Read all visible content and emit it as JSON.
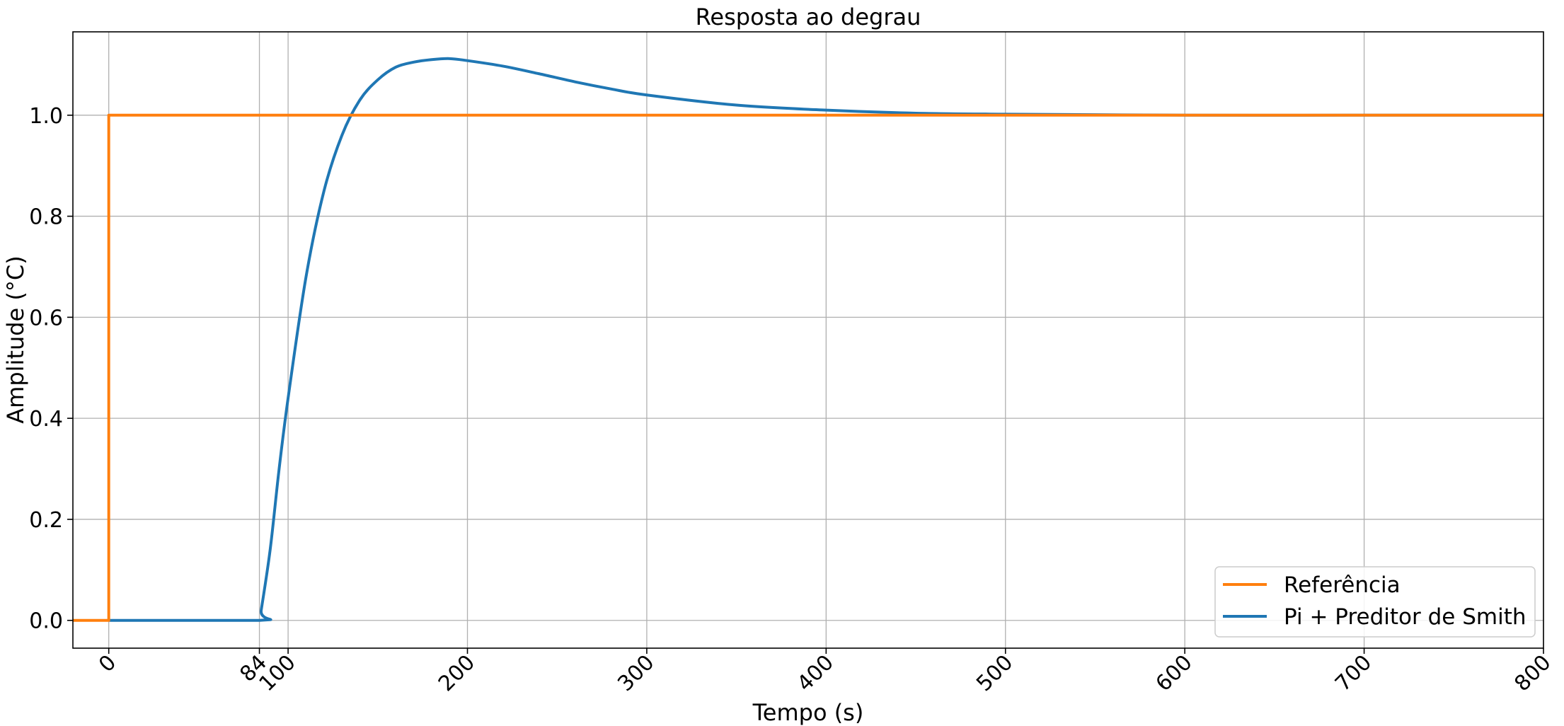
{
  "chart_data": {
    "type": "line",
    "title": "Resposta ao degrau",
    "xlabel": "Tempo (s)",
    "ylabel": "Amplitude (°C)",
    "xlim": [
      -20,
      800
    ],
    "ylim": [
      -0.055,
      1.165
    ],
    "x_ticks": [
      0,
      84,
      100,
      200,
      300,
      400,
      500,
      600,
      700,
      800
    ],
    "y_ticks": [
      0.0,
      0.2,
      0.4,
      0.6,
      0.8,
      1.0
    ],
    "y_tick_labels": [
      "0.0",
      "0.2",
      "0.4",
      "0.6",
      "0.8",
      "1.0"
    ],
    "grid": true,
    "legend_position": "lower-right",
    "series": [
      {
        "name": "Referência",
        "color": "#ff7f0e",
        "x": [
          -20,
          0,
          0,
          800
        ],
        "y": [
          0,
          0,
          1,
          1
        ]
      },
      {
        "name": "Pi + Preditor de Smith",
        "color": "#1f77b4",
        "x": [
          0,
          84,
          85,
          90,
          95,
          100,
          110,
          120,
          130,
          140,
          150,
          160,
          170,
          180,
          190,
          200,
          220,
          240,
          260,
          280,
          300,
          350,
          400,
          450,
          500,
          550,
          600,
          700,
          800
        ],
        "y": [
          0,
          0,
          0.02,
          0.14,
          0.3,
          0.44,
          0.68,
          0.85,
          0.96,
          1.03,
          1.07,
          1.095,
          1.105,
          1.11,
          1.112,
          1.108,
          1.097,
          1.082,
          1.066,
          1.052,
          1.04,
          1.02,
          1.01,
          1.004,
          1.002,
          1.001,
          1.0,
          1.0,
          1.0
        ]
      }
    ]
  }
}
